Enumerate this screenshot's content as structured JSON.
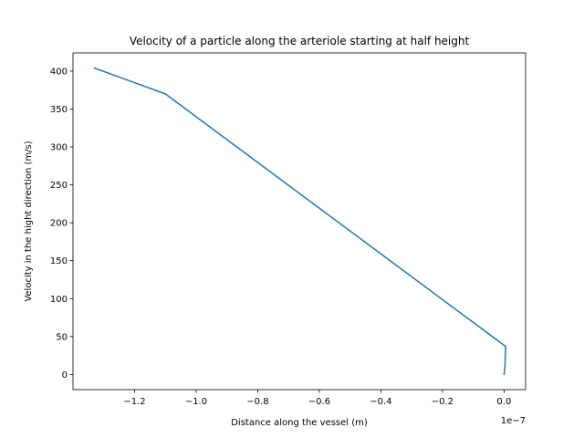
{
  "chart_data": {
    "type": "line",
    "title": "Velocity of a particle along the arteriole starting at half height",
    "xlabel": "Distance along the vessel (m)",
    "ylabel": "Velocity in the hight direction (m/s)",
    "x_offset_text": "1e−7",
    "x_scale": 1e-07,
    "xlim": [
      -1.4,
      0.07
    ],
    "ylim": [
      -20,
      424
    ],
    "xticks": [
      -1.2,
      -1.0,
      -0.8,
      -0.6,
      -0.4,
      -0.2,
      0.0
    ],
    "xtick_labels": [
      "−1.2",
      "−1.0",
      "−0.8",
      "−0.6",
      "−0.4",
      "−0.2",
      "0.0"
    ],
    "yticks": [
      0,
      50,
      100,
      150,
      200,
      250,
      300,
      350,
      400
    ],
    "ytick_labels": [
      "0",
      "50",
      "100",
      "150",
      "200",
      "250",
      "300",
      "350",
      "400"
    ],
    "grid": false,
    "series": [
      {
        "name": "velocity",
        "color": "#1f77b4",
        "x": [
          -1.33,
          -1.1,
          0.005,
          0.003,
          0.0
        ],
        "y": [
          404,
          370,
          37,
          10,
          0
        ]
      }
    ]
  }
}
